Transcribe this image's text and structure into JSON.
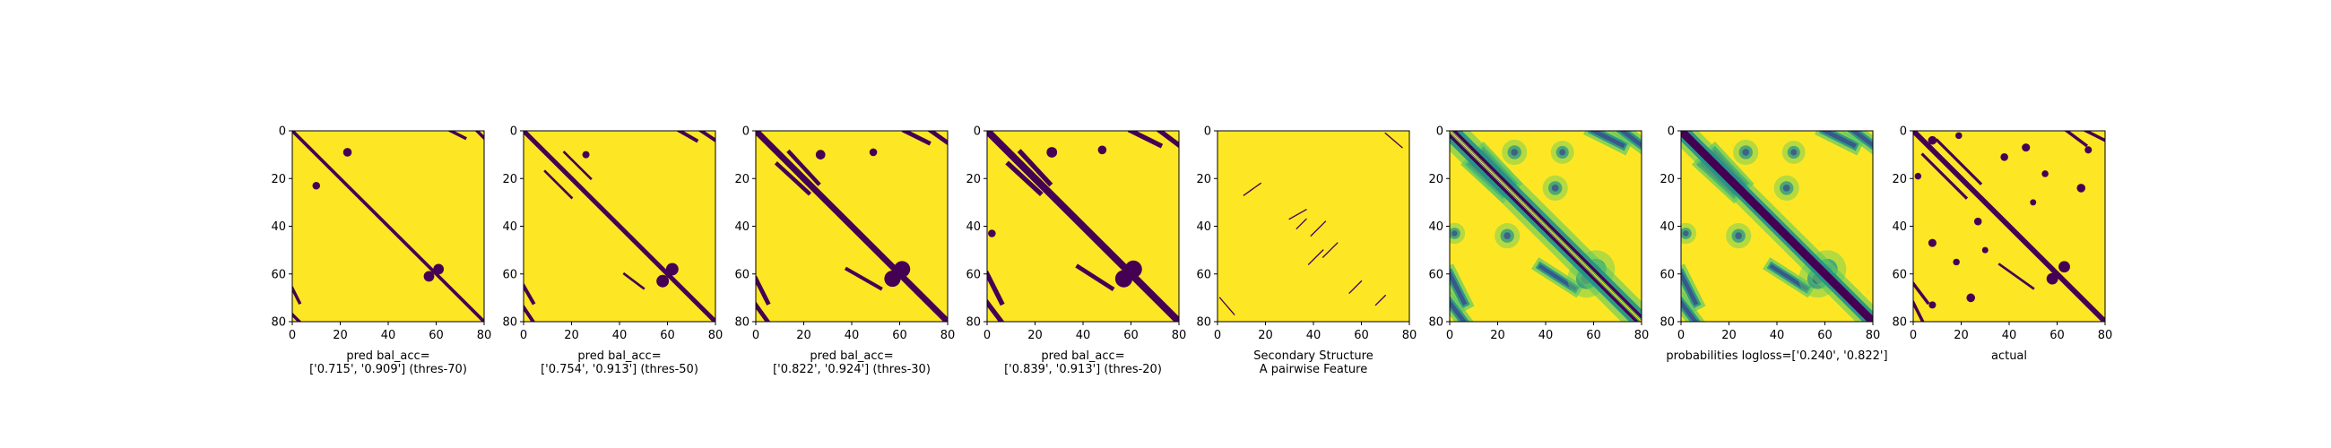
{
  "figure": {
    "background": "#ffffff",
    "colormap": [
      "#440154",
      "#3b528b",
      "#21918c",
      "#5ec962",
      "#fde725"
    ]
  },
  "chart_data": [
    {
      "type": "heatmap",
      "kind": "binary",
      "caption_lines": [
        "pred bal_acc=",
        "['0.715', '0.909'] (thres-70)"
      ],
      "xticks": [
        "0",
        "20",
        "40",
        "60",
        "80"
      ],
      "yticks": [
        "0",
        "20",
        "40",
        "60",
        "80"
      ],
      "xlim": [
        0,
        80
      ],
      "ylim": [
        80,
        0
      ],
      "diagonal_width": 1.4,
      "features": [
        {
          "x": [
            66,
            72
          ],
          "y": [
            0,
            3
          ],
          "w": 1.3
        },
        {
          "x": [
            77,
            80
          ],
          "y": [
            0,
            3
          ],
          "w": 1.3
        },
        {
          "x": [
            0,
            3
          ],
          "y": [
            66,
            72
          ],
          "w": 1.3
        },
        {
          "x": [
            0,
            3
          ],
          "y": [
            77,
            80
          ],
          "w": 1.3
        }
      ],
      "blobs": [
        {
          "x": 23,
          "y": 9,
          "r": 1.8
        },
        {
          "x": 10,
          "y": 23,
          "r": 1.6
        },
        {
          "x": 61,
          "y": 58,
          "r": 2.2
        },
        {
          "x": 57,
          "y": 61,
          "r": 2.2
        }
      ]
    },
    {
      "type": "heatmap",
      "kind": "binary",
      "caption_lines": [
        "pred bal_acc=",
        "['0.754', '0.913'] (thres-50)"
      ],
      "xticks": [
        "0",
        "20",
        "40",
        "60",
        "80"
      ],
      "yticks": [
        "0",
        "20",
        "40",
        "60",
        "80"
      ],
      "xlim": [
        0,
        80
      ],
      "ylim": [
        80,
        0
      ],
      "diagonal_width": 1.9,
      "features": [
        {
          "x": [
            17,
            28
          ],
          "y": [
            9,
            20
          ],
          "w": 1.0
        },
        {
          "x": [
            9,
            20
          ],
          "y": [
            17,
            28
          ],
          "w": 1.0
        },
        {
          "x": [
            65,
            72
          ],
          "y": [
            0,
            4
          ],
          "w": 1.5
        },
        {
          "x": [
            74,
            80
          ],
          "y": [
            0,
            4
          ],
          "w": 1.5
        },
        {
          "x": [
            0,
            4
          ],
          "y": [
            65,
            72
          ],
          "w": 1.5
        },
        {
          "x": [
            0,
            4
          ],
          "y": [
            74,
            80
          ],
          "w": 1.5
        },
        {
          "x": [
            42,
            50
          ],
          "y": [
            60,
            66
          ],
          "w": 1.0
        }
      ],
      "blobs": [
        {
          "x": 62,
          "y": 58,
          "r": 2.6
        },
        {
          "x": 58,
          "y": 63,
          "r": 2.6
        },
        {
          "x": 26,
          "y": 10,
          "r": 1.5
        }
      ]
    },
    {
      "type": "heatmap",
      "kind": "binary",
      "caption_lines": [
        "pred bal_acc=",
        "['0.822', '0.924'] (thres-30)"
      ],
      "xticks": [
        "0",
        "20",
        "40",
        "60",
        "80"
      ],
      "yticks": [
        "0",
        "20",
        "40",
        "60",
        "80"
      ],
      "xlim": [
        0,
        80
      ],
      "ylim": [
        80,
        0
      ],
      "diagonal_width": 2.6,
      "features": [
        {
          "x": [
            14,
            26
          ],
          "y": [
            9,
            22
          ],
          "w": 1.7
        },
        {
          "x": [
            9,
            22
          ],
          "y": [
            14,
            26
          ],
          "w": 1.7
        },
        {
          "x": [
            62,
            72
          ],
          "y": [
            0,
            5
          ],
          "w": 1.8
        },
        {
          "x": [
            73,
            80
          ],
          "y": [
            0,
            5
          ],
          "w": 1.8
        },
        {
          "x": [
            0,
            5
          ],
          "y": [
            62,
            72
          ],
          "w": 1.8
        },
        {
          "x": [
            0,
            5
          ],
          "y": [
            73,
            80
          ],
          "w": 1.8
        },
        {
          "x": [
            38,
            52
          ],
          "y": [
            58,
            66
          ],
          "w": 1.5
        }
      ],
      "blobs": [
        {
          "x": 61,
          "y": 58,
          "r": 3.4
        },
        {
          "x": 57,
          "y": 62,
          "r": 3.4
        },
        {
          "x": 27,
          "y": 10,
          "r": 2.0
        },
        {
          "x": 49,
          "y": 9,
          "r": 1.6
        }
      ]
    },
    {
      "type": "heatmap",
      "kind": "binary",
      "caption_lines": [
        "pred bal_acc=",
        "['0.839', '0.913'] (thres-20)"
      ],
      "xticks": [
        "0",
        "20",
        "40",
        "60",
        "80"
      ],
      "yticks": [
        "0",
        "20",
        "40",
        "60",
        "80"
      ],
      "xlim": [
        0,
        80
      ],
      "ylim": [
        80,
        0
      ],
      "diagonal_width": 3.0,
      "features": [
        {
          "x": [
            14,
            26
          ],
          "y": [
            9,
            22
          ],
          "w": 2.0
        },
        {
          "x": [
            9,
            22
          ],
          "y": [
            14,
            26
          ],
          "w": 2.0
        },
        {
          "x": [
            60,
            72
          ],
          "y": [
            0,
            6
          ],
          "w": 2.0
        },
        {
          "x": [
            72,
            80
          ],
          "y": [
            0,
            6
          ],
          "w": 2.0
        },
        {
          "x": [
            0,
            6
          ],
          "y": [
            60,
            72
          ],
          "w": 2.0
        },
        {
          "x": [
            0,
            6
          ],
          "y": [
            72,
            80
          ],
          "w": 2.0
        },
        {
          "x": [
            38,
            52
          ],
          "y": [
            57,
            66
          ],
          "w": 1.8
        }
      ],
      "blobs": [
        {
          "x": 61,
          "y": 58,
          "r": 3.6
        },
        {
          "x": 57,
          "y": 62,
          "r": 3.6
        },
        {
          "x": 27,
          "y": 9,
          "r": 2.2
        },
        {
          "x": 48,
          "y": 8,
          "r": 1.8
        },
        {
          "x": 2,
          "y": 43,
          "r": 1.6
        }
      ]
    },
    {
      "type": "heatmap",
      "kind": "lines",
      "caption_lines": [
        "Secondary Structure",
        "A pairwise Feature"
      ],
      "xticks": [
        "0",
        "20",
        "40",
        "60",
        "80"
      ],
      "yticks": [
        "0",
        "20",
        "40",
        "60",
        "80"
      ],
      "xlim": [
        0,
        80
      ],
      "ylim": [
        80,
        0
      ],
      "diagonal_width": 0,
      "features": [
        {
          "x": [
            70,
            77
          ],
          "y": [
            1,
            7
          ],
          "w": 0.5
        },
        {
          "x": [
            1,
            7
          ],
          "y": [
            70,
            77
          ],
          "w": 0.5
        },
        {
          "x": [
            11,
            18
          ],
          "y": [
            27,
            22
          ],
          "w": 0.5
        },
        {
          "x": [
            30,
            37
          ],
          "y": [
            37,
            33
          ],
          "w": 0.5
        },
        {
          "x": [
            33,
            37
          ],
          "y": [
            41,
            37
          ],
          "w": 0.5
        },
        {
          "x": [
            39,
            45
          ],
          "y": [
            44,
            38
          ],
          "w": 0.5
        },
        {
          "x": [
            44,
            50
          ],
          "y": [
            53,
            47
          ],
          "w": 0.5
        },
        {
          "x": [
            38,
            44
          ],
          "y": [
            56,
            50
          ],
          "w": 0.5
        },
        {
          "x": [
            55,
            60
          ],
          "y": [
            68,
            63
          ],
          "w": 0.5
        },
        {
          "x": [
            66,
            70
          ],
          "y": [
            73,
            69
          ],
          "w": 0.5
        }
      ],
      "blobs": []
    },
    {
      "type": "heatmap",
      "kind": "probability",
      "caption_lines": [],
      "xticks": [
        "0",
        "20",
        "40",
        "60",
        "80"
      ],
      "yticks": [
        "0",
        "20",
        "40",
        "60",
        "80"
      ],
      "xlim": [
        0,
        80
      ],
      "ylim": [
        80,
        0
      ],
      "diagonal_width": 4.0,
      "features": [
        {
          "x": [
            14,
            26
          ],
          "y": [
            9,
            22
          ],
          "w": 2.0
        },
        {
          "x": [
            9,
            22
          ],
          "y": [
            14,
            26
          ],
          "w": 2.0
        },
        {
          "x": [
            60,
            72
          ],
          "y": [
            0,
            6
          ],
          "w": 2.0
        },
        {
          "x": [
            72,
            80
          ],
          "y": [
            0,
            6
          ],
          "w": 2.0
        },
        {
          "x": [
            0,
            6
          ],
          "y": [
            60,
            72
          ],
          "w": 2.0
        },
        {
          "x": [
            0,
            6
          ],
          "y": [
            72,
            80
          ],
          "w": 2.0
        },
        {
          "x": [
            38,
            52
          ],
          "y": [
            57,
            66
          ],
          "w": 1.8
        }
      ],
      "blobs": [
        {
          "x": 61,
          "y": 58,
          "r": 3.6
        },
        {
          "x": 57,
          "y": 62,
          "r": 3.6
        },
        {
          "x": 27,
          "y": 9,
          "r": 2.4
        },
        {
          "x": 47,
          "y": 9,
          "r": 2.2
        },
        {
          "x": 2,
          "y": 43,
          "r": 2.0
        },
        {
          "x": 44,
          "y": 24,
          "r": 2.4
        },
        {
          "x": 24,
          "y": 44,
          "r": 2.4
        }
      ]
    },
    {
      "type": "heatmap",
      "kind": "probability",
      "caption_lines": [
        "probabilities logloss=['0.240', '0.822']"
      ],
      "xticks": [
        "0",
        "20",
        "40",
        "60",
        "80"
      ],
      "yticks": [
        "0",
        "20",
        "40",
        "60",
        "80"
      ],
      "xlim": [
        0,
        80
      ],
      "ylim": [
        80,
        0
      ],
      "diagonal_width": 3.4,
      "features": [
        {
          "x": [
            14,
            26
          ],
          "y": [
            9,
            22
          ],
          "w": 2.0
        },
        {
          "x": [
            9,
            22
          ],
          "y": [
            14,
            26
          ],
          "w": 2.0
        },
        {
          "x": [
            60,
            72
          ],
          "y": [
            0,
            6
          ],
          "w": 2.0
        },
        {
          "x": [
            72,
            80
          ],
          "y": [
            0,
            6
          ],
          "w": 2.0
        },
        {
          "x": [
            0,
            6
          ],
          "y": [
            60,
            72
          ],
          "w": 2.0
        },
        {
          "x": [
            0,
            6
          ],
          "y": [
            72,
            80
          ],
          "w": 2.0
        },
        {
          "x": [
            38,
            52
          ],
          "y": [
            57,
            66
          ],
          "w": 1.8
        }
      ],
      "blobs": [
        {
          "x": 61,
          "y": 58,
          "r": 3.6
        },
        {
          "x": 57,
          "y": 62,
          "r": 3.6
        },
        {
          "x": 27,
          "y": 9,
          "r": 2.4
        },
        {
          "x": 47,
          "y": 9,
          "r": 2.2
        },
        {
          "x": 2,
          "y": 43,
          "r": 2.0
        },
        {
          "x": 44,
          "y": 24,
          "r": 2.4
        },
        {
          "x": 24,
          "y": 44,
          "r": 2.4
        }
      ]
    },
    {
      "type": "heatmap",
      "kind": "binary",
      "caption_lines": [
        "actual"
      ],
      "xticks": [
        "0",
        "20",
        "40",
        "60",
        "80"
      ],
      "yticks": [
        "0",
        "20",
        "40",
        "60",
        "80"
      ],
      "xlim": [
        0,
        80
      ],
      "ylim": [
        80,
        0
      ],
      "diagonal_width": 2.2,
      "features": [
        {
          "x": [
            10,
            28
          ],
          "y": [
            4,
            22
          ],
          "w": 1.2
        },
        {
          "x": [
            4,
            22
          ],
          "y": [
            10,
            28
          ],
          "w": 1.2
        },
        {
          "x": [
            64,
            72
          ],
          "y": [
            0,
            6
          ],
          "w": 1.3
        },
        {
          "x": [
            72,
            80
          ],
          "y": [
            0,
            4
          ],
          "w": 1.3
        },
        {
          "x": [
            0,
            6
          ],
          "y": [
            64,
            72
          ],
          "w": 1.3
        },
        {
          "x": [
            0,
            4
          ],
          "y": [
            72,
            80
          ],
          "w": 1.3
        },
        {
          "x": [
            36,
            50
          ],
          "y": [
            56,
            66
          ],
          "w": 1.0
        }
      ],
      "blobs": [
        {
          "x": 63,
          "y": 57,
          "r": 2.4
        },
        {
          "x": 58,
          "y": 62,
          "r": 2.4
        },
        {
          "x": 8,
          "y": 4,
          "r": 1.8
        },
        {
          "x": 19,
          "y": 2,
          "r": 1.4
        },
        {
          "x": 2,
          "y": 19,
          "r": 1.4
        },
        {
          "x": 38,
          "y": 11,
          "r": 1.6
        },
        {
          "x": 27,
          "y": 38,
          "r": 1.6
        },
        {
          "x": 47,
          "y": 7,
          "r": 1.7
        },
        {
          "x": 8,
          "y": 47,
          "r": 1.7
        },
        {
          "x": 55,
          "y": 18,
          "r": 1.4
        },
        {
          "x": 18,
          "y": 55,
          "r": 1.4
        },
        {
          "x": 70,
          "y": 24,
          "r": 1.8
        },
        {
          "x": 24,
          "y": 70,
          "r": 1.8
        },
        {
          "x": 73,
          "y": 8,
          "r": 1.5
        },
        {
          "x": 8,
          "y": 73,
          "r": 1.5
        },
        {
          "x": 50,
          "y": 30,
          "r": 1.3
        },
        {
          "x": 30,
          "y": 50,
          "r": 1.3
        }
      ]
    }
  ]
}
